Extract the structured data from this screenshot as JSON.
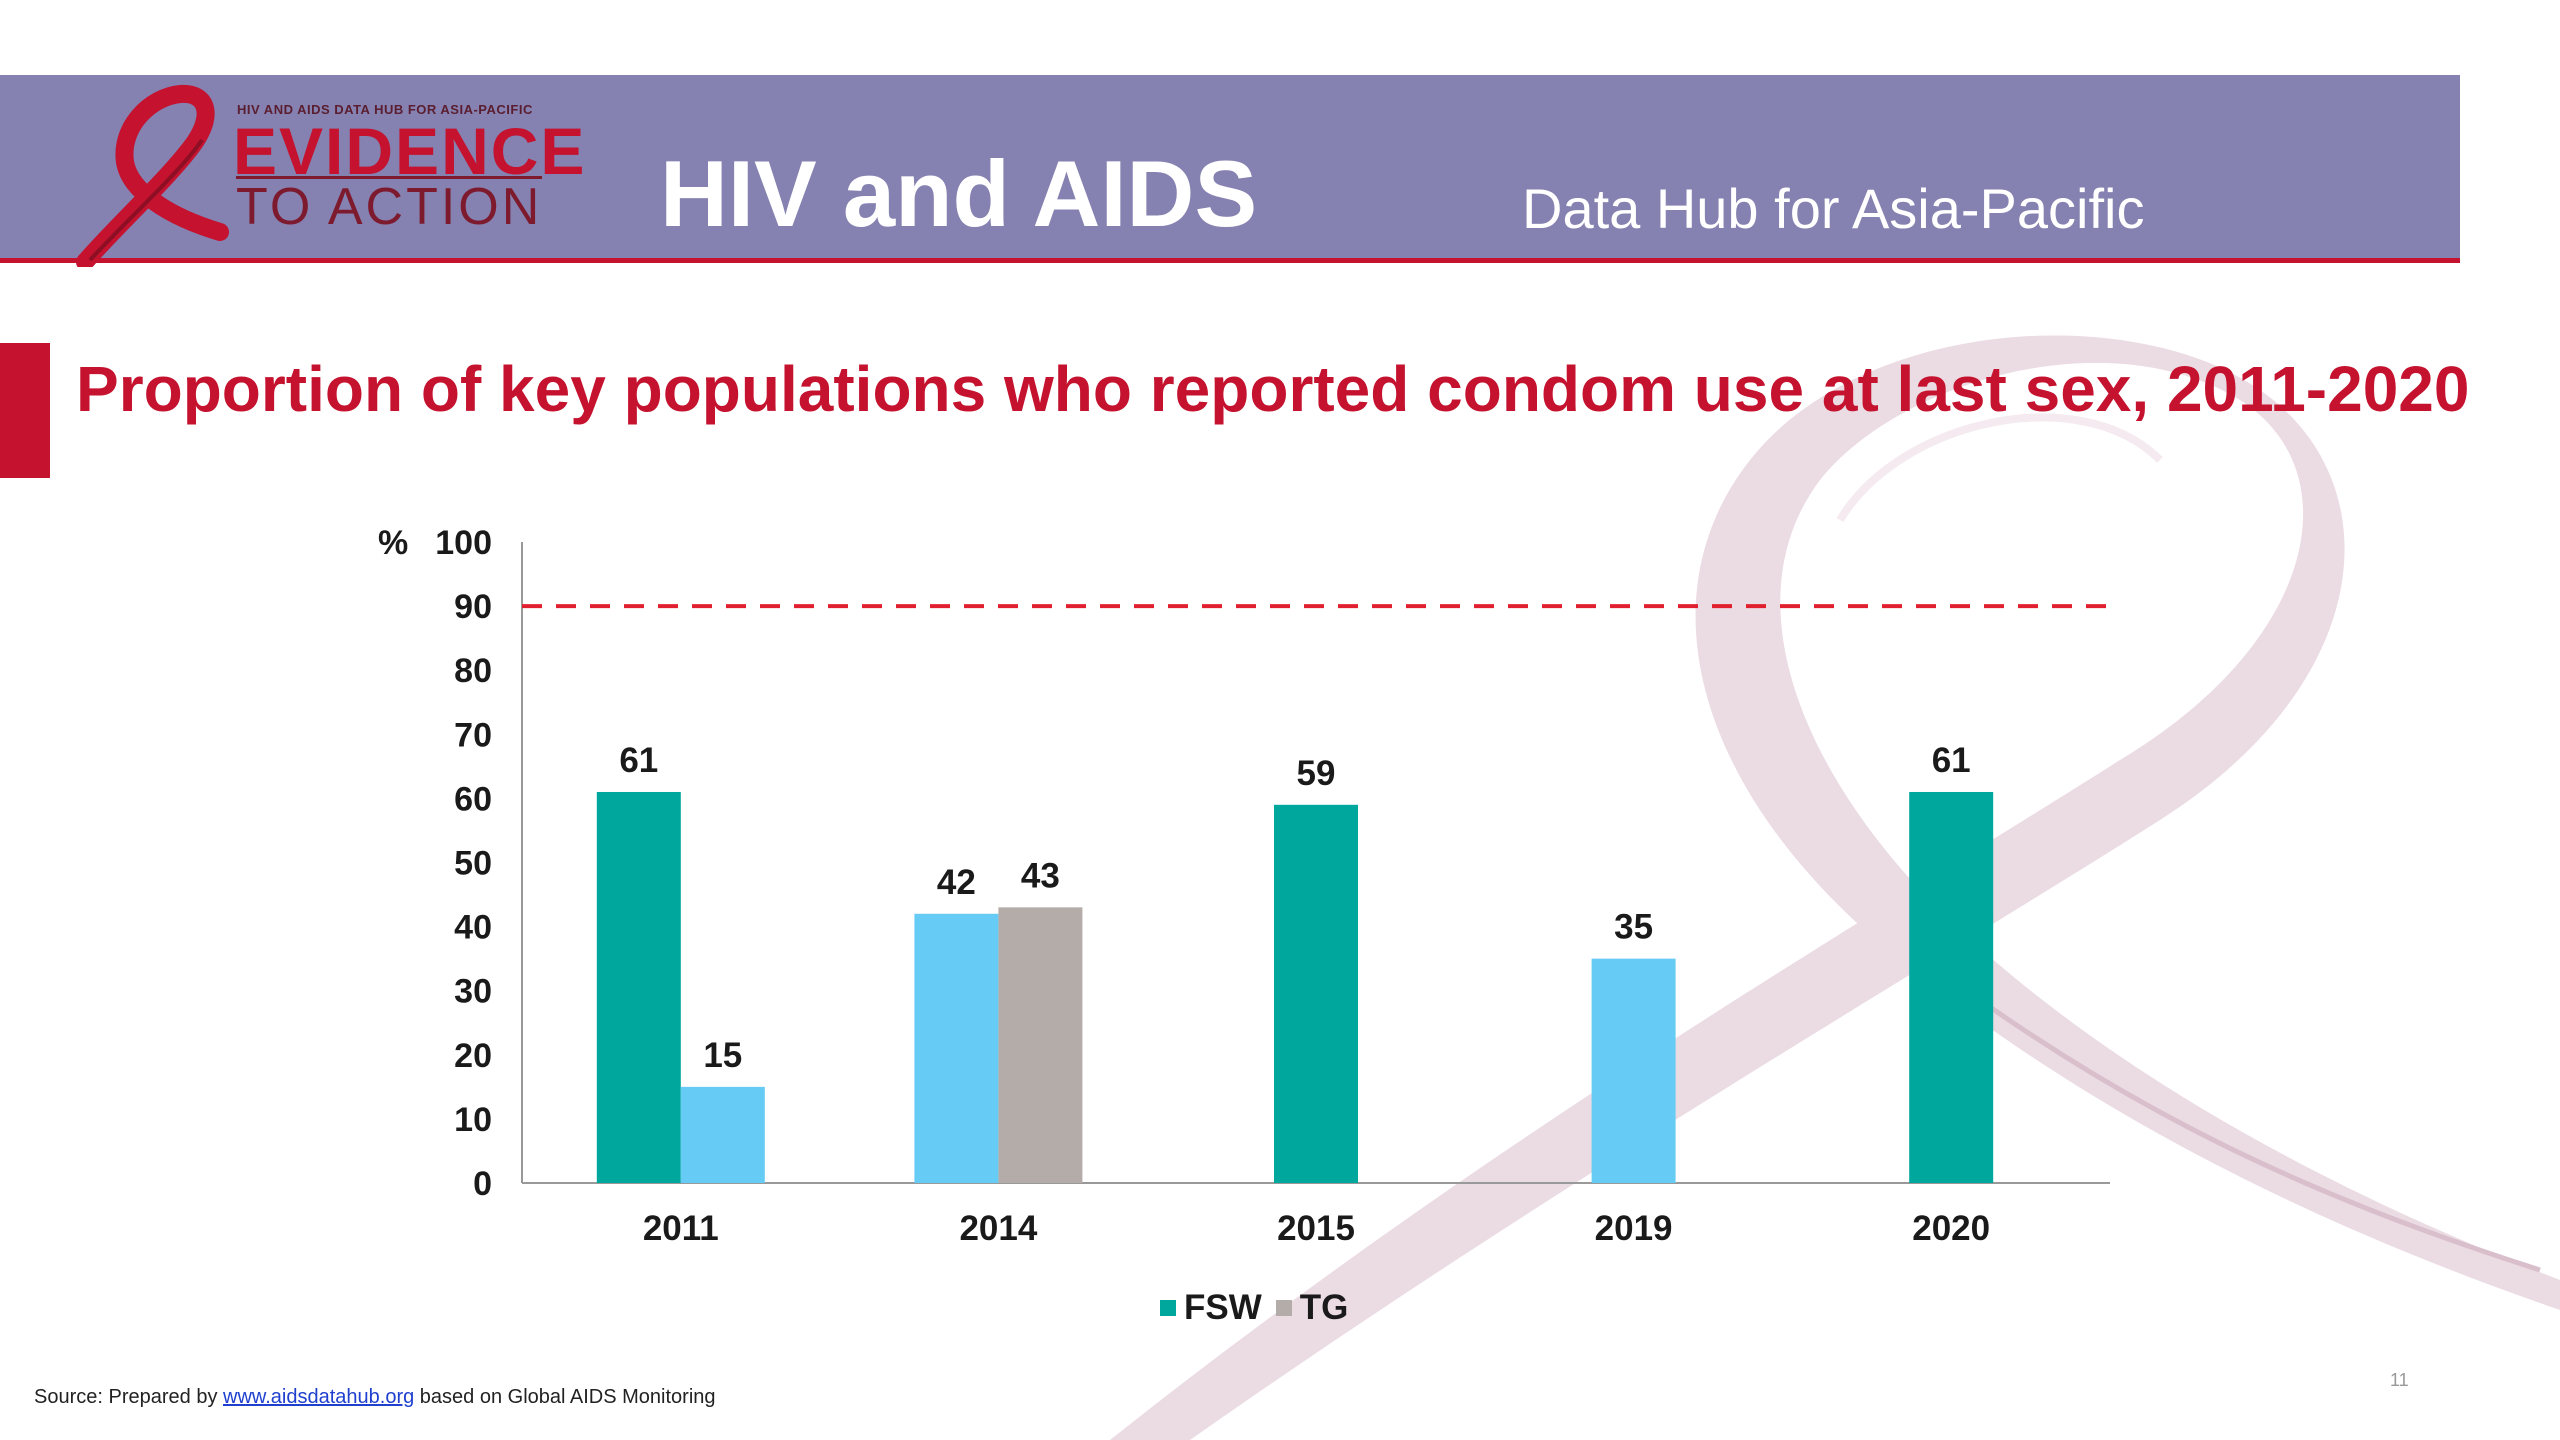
{
  "header": {
    "logo_small": "HIV AND AIDS DATA HUB FOR ASIA-PACIFIC",
    "logo_main": "EVIDENCE",
    "logo_sub": "TO ACTION",
    "title": "HIV and AIDS",
    "subtitle": "Data Hub for Asia-Pacific"
  },
  "slide": {
    "title": "Proportion of key populations who reported condom use at last sex, 2011-2020"
  },
  "source": {
    "prefix": "Source: Prepared by",
    "link": "www.aidsdatahub.org",
    "suffix": "based on Global AIDS Monitoring"
  },
  "page_number": "11",
  "colors": {
    "fsw": "#00a79d",
    "msm": "#66ccf5",
    "tg": "#b3aca8",
    "target": "#e0202e",
    "brand_red": "#c4122f",
    "header_bg": "#8581b0"
  },
  "chart_data": {
    "type": "bar",
    "categories": [
      "2011",
      "2014",
      "2015",
      "2019",
      "2020"
    ],
    "ylabel": "%",
    "ylim": [
      0,
      100
    ],
    "yticks": [
      0,
      10,
      20,
      30,
      40,
      50,
      60,
      70,
      80,
      90,
      100
    ],
    "target_line": 90,
    "series": [
      {
        "name": "FSW",
        "color": "#00a79d",
        "values": [
          61,
          null,
          59,
          null,
          61
        ]
      },
      {
        "name": "",
        "color": "#66ccf5",
        "values": [
          15,
          42,
          null,
          35,
          null
        ]
      },
      {
        "name": "TG",
        "color": "#b3aca8",
        "values": [
          null,
          43,
          null,
          null,
          null
        ]
      }
    ],
    "legend": [
      "FSW",
      "TG"
    ],
    "legend_position": "bottom"
  }
}
